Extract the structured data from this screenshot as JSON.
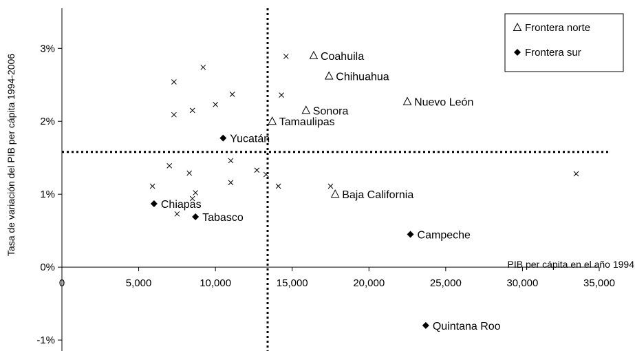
{
  "chart_data": {
    "type": "scatter",
    "title": "",
    "xlabel": "PIB per cápita en el año 1994",
    "ylabel": "Tasa de variación del PIB per cápita 1994-2006",
    "xlim": [
      0,
      35000
    ],
    "ylim": [
      -1.15,
      3.55
    ],
    "x_ticks": [
      0,
      5000,
      10000,
      15000,
      20000,
      25000,
      30000,
      35000
    ],
    "x_tick_labels": [
      "0",
      "5,000",
      "10,000",
      "15,000",
      "20,000",
      "25,000",
      "30,000",
      "35,000"
    ],
    "y_ticks": [
      -1,
      0,
      1,
      2,
      3
    ],
    "y_tick_labels": [
      "-1%",
      "0%",
      "1%",
      "2%",
      "3%"
    ],
    "reference_lines": {
      "vertical_x": 13400,
      "horizontal_y": 1.58,
      "style": "dotted"
    },
    "legend": {
      "position": "top-right",
      "entries": [
        "Frontera norte",
        "Frontera sur"
      ]
    },
    "series": [
      {
        "name": "Frontera norte",
        "marker": "triangle",
        "points": [
          {
            "x": 16400,
            "y": 2.9,
            "label": "Coahuila"
          },
          {
            "x": 17400,
            "y": 2.62,
            "label": "Chihuahua"
          },
          {
            "x": 22500,
            "y": 2.27,
            "label": "Nuevo León"
          },
          {
            "x": 15900,
            "y": 2.15,
            "label": "Sonora"
          },
          {
            "x": 13700,
            "y": 2.0,
            "label": "Tamaulipas"
          },
          {
            "x": 17800,
            "y": 1.0,
            "label": "Baja California"
          }
        ]
      },
      {
        "name": "Frontera sur",
        "marker": "diamond",
        "points": [
          {
            "x": 10500,
            "y": 1.77,
            "label": "Yucatán"
          },
          {
            "x": 6000,
            "y": 0.87,
            "label": "Chiapas"
          },
          {
            "x": 8700,
            "y": 0.69,
            "label": "Tabasco"
          },
          {
            "x": 22700,
            "y": 0.45,
            "label": "Campeche"
          },
          {
            "x": 23700,
            "y": -0.8,
            "label": "Quintana Roo"
          }
        ]
      },
      {
        "marker": "cross",
        "points": [
          {
            "x": 14600,
            "y": 2.89
          },
          {
            "x": 9200,
            "y": 2.74
          },
          {
            "x": 7300,
            "y": 2.54
          },
          {
            "x": 11100,
            "y": 2.37
          },
          {
            "x": 14300,
            "y": 2.36
          },
          {
            "x": 10000,
            "y": 2.23
          },
          {
            "x": 8500,
            "y": 2.15
          },
          {
            "x": 7300,
            "y": 2.09
          },
          {
            "x": 11000,
            "y": 1.46
          },
          {
            "x": 7000,
            "y": 1.39
          },
          {
            "x": 12700,
            "y": 1.33
          },
          {
            "x": 8300,
            "y": 1.29
          },
          {
            "x": 13300,
            "y": 1.27
          },
          {
            "x": 33500,
            "y": 1.28
          },
          {
            "x": 11000,
            "y": 1.16
          },
          {
            "x": 5900,
            "y": 1.11
          },
          {
            "x": 14100,
            "y": 1.11
          },
          {
            "x": 17500,
            "y": 1.11
          },
          {
            "x": 8700,
            "y": 1.02
          },
          {
            "x": 8500,
            "y": 0.94
          },
          {
            "x": 7500,
            "y": 0.73
          }
        ]
      }
    ]
  }
}
